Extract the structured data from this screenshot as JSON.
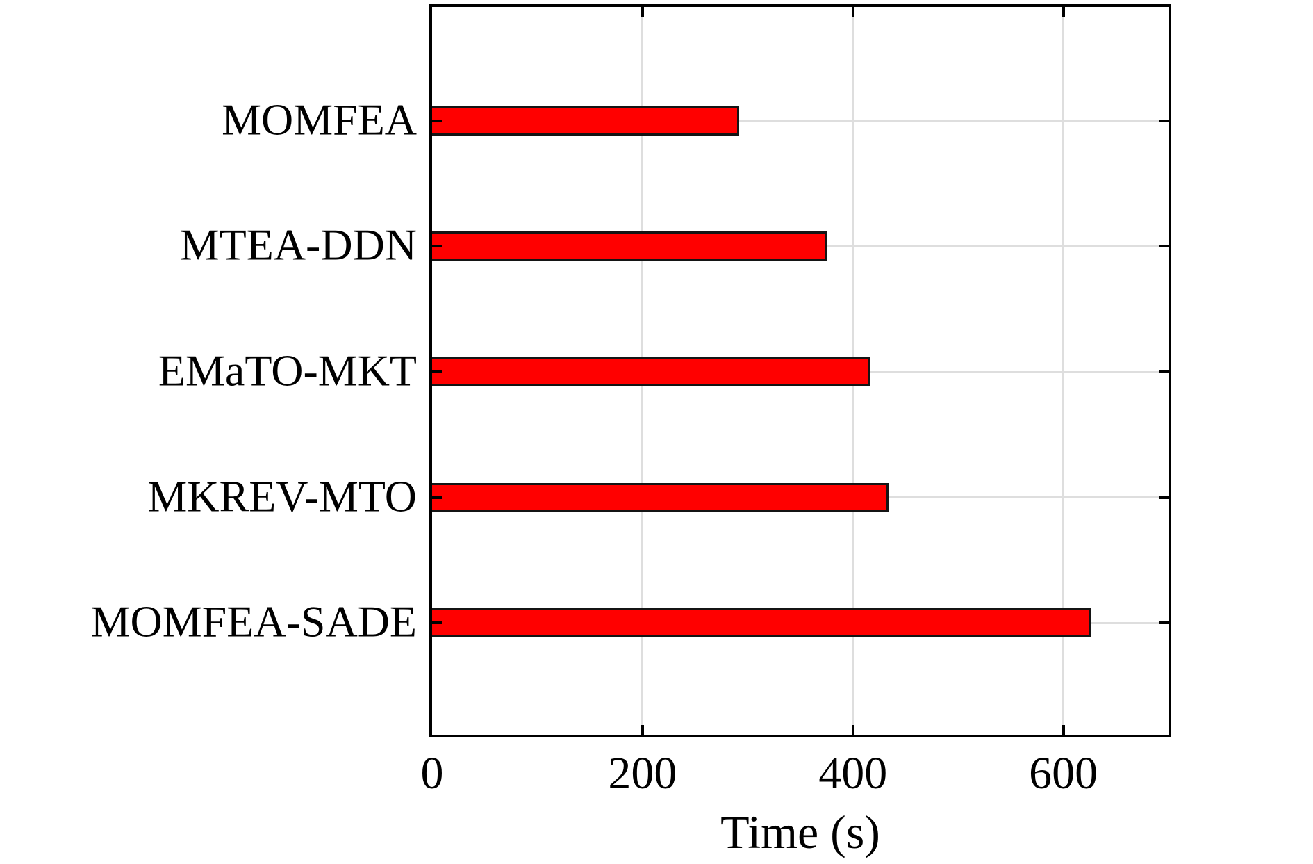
{
  "chart_data": {
    "type": "bar",
    "orientation": "horizontal",
    "title": "",
    "xlabel": "Time (s)",
    "ylabel": "",
    "categories": [
      "MOMFEA",
      "MTEA-DDN",
      "EMaTO-MKT",
      "MKREV-MTO",
      "MOMFEA-SADE"
    ],
    "values": [
      292,
      376,
      417,
      434,
      626
    ],
    "xticks": [
      0,
      200,
      400,
      600
    ],
    "xtick_labels": [
      "0",
      "200",
      "400",
      "600"
    ],
    "xlim": [
      0,
      700
    ],
    "grid": true,
    "legend_position": "none",
    "colors": {
      "bar_fill": "#ff0000",
      "bar_edge": "#141414",
      "axis": "#000000",
      "gridline": "#dedede",
      "background": "#ffffff",
      "text": "#000000"
    }
  }
}
